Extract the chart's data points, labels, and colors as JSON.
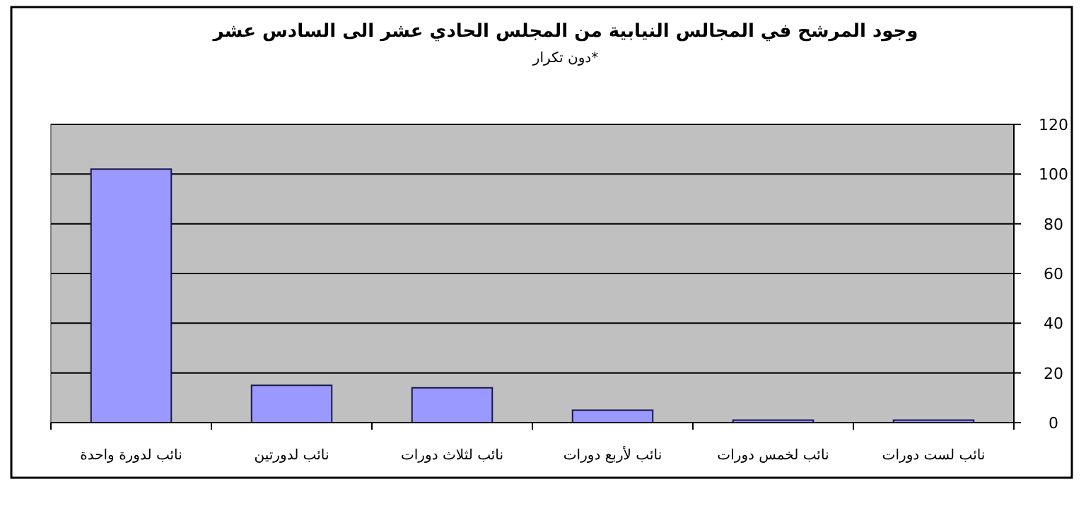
{
  "chart_data": {
    "type": "bar",
    "title": "وجود المرشح في المجالس النيابية من المجلس الحادي عشر الى السادس عشر",
    "subtitle": "*دون تكرار",
    "categories": [
      "نائب لدورة واحدة",
      "نائب لدورتين",
      "نائب لثلاث دورات",
      "نائب لأربع دورات",
      "نائب لخمس دورات",
      "نائب لست دورات"
    ],
    "values": [
      102,
      15,
      14,
      5,
      1,
      1
    ],
    "color": "#9999ff",
    "ylim": [
      0,
      120
    ],
    "yticks": [
      0,
      20,
      40,
      60,
      80,
      100,
      120
    ],
    "grid": "y"
  }
}
